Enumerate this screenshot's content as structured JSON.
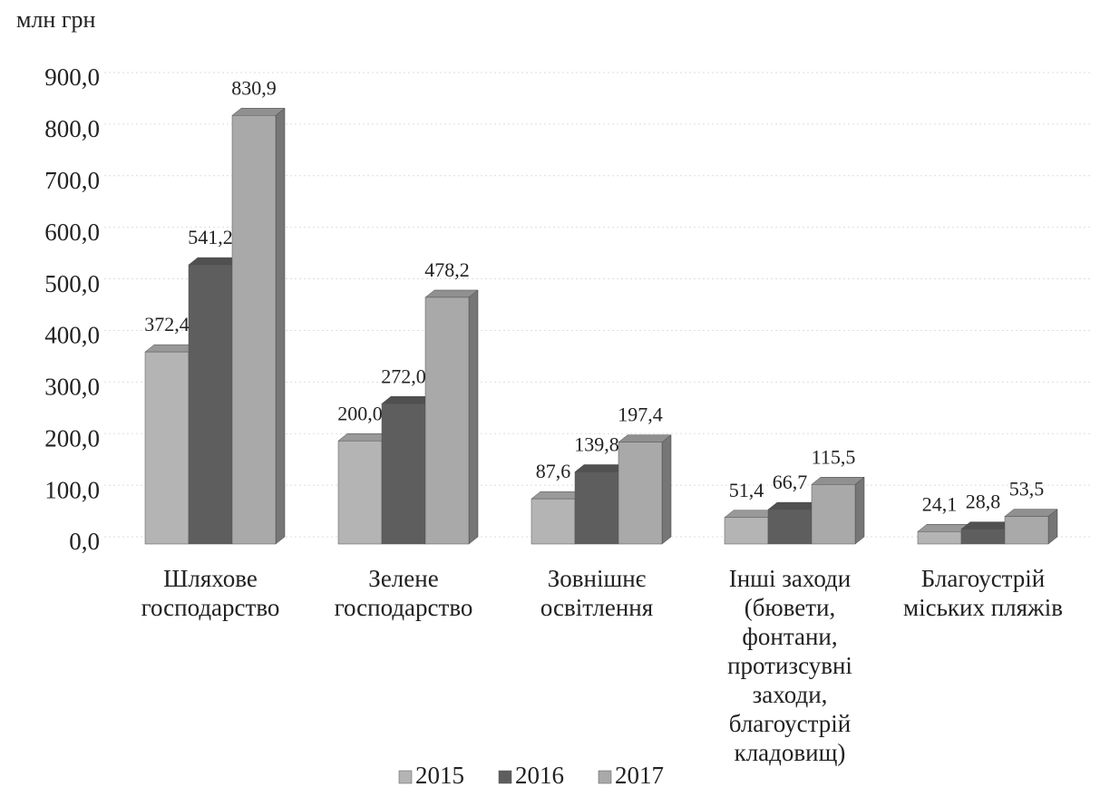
{
  "chart_data": {
    "type": "bar3d",
    "y_label": "млн грн",
    "categories": [
      "Шляхове господарство",
      "Зелене господарство",
      "Зовнішнє освітлення",
      "Інші заходи (бювети, фонтани, протизсувні заходи, благоустрій кладовищ)",
      "Благоустрій міських пляжів"
    ],
    "series": [
      {
        "name": "2015",
        "color": "#b4b4b4",
        "values": [
          372.4,
          200.0,
          87.6,
          51.4,
          24.1
        ],
        "value_labels": [
          "372,4",
          "200,0",
          "87,6",
          "51,4",
          "24,1"
        ]
      },
      {
        "name": "2016",
        "color": "#5e5e5e",
        "values": [
          541.2,
          272.0,
          139.8,
          66.7,
          28.8
        ],
        "value_labels": [
          "541,2",
          "272,0",
          "139,8",
          "66,7",
          "28,8"
        ]
      },
      {
        "name": "2017",
        "color": "#a9a9a9",
        "values": [
          830.9,
          478.2,
          197.4,
          115.5,
          53.5
        ],
        "value_labels": [
          "830,9",
          "478,2",
          "197,4",
          "115,5",
          "53,5"
        ]
      }
    ],
    "ylim": [
      0,
      900
    ],
    "yticks": [
      {
        "value": 0,
        "label": "0,0"
      },
      {
        "value": 100,
        "label": "100,0"
      },
      {
        "value": 200,
        "label": "200,0"
      },
      {
        "value": 300,
        "label": "300,0"
      },
      {
        "value": 400,
        "label": "400,0"
      },
      {
        "value": 500,
        "label": "500,0"
      },
      {
        "value": 600,
        "label": "600,0"
      },
      {
        "value": 700,
        "label": "700,0"
      },
      {
        "value": 800,
        "label": "800,0"
      },
      {
        "value": 900,
        "label": "900,0"
      }
    ],
    "grid": true,
    "legend": "bottom"
  }
}
